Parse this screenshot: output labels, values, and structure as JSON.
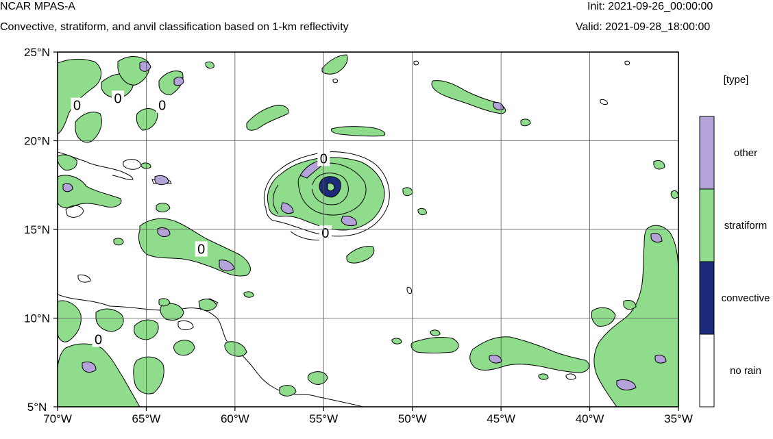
{
  "header": {
    "model": "NCAR MPAS-A",
    "subtitle": "Convective, stratiform, and anvil classification based on 1-km reflectivity",
    "init": "Init: 2021-09-26_00:00:00",
    "valid": "Valid: 2021-09-28_18:00:00"
  },
  "map": {
    "lon_range": [
      -70,
      -35
    ],
    "lat_range": [
      5,
      25
    ],
    "lon_ticks": [
      {
        "value": -70,
        "label": "70°W"
      },
      {
        "value": -65,
        "label": "65°W"
      },
      {
        "value": -60,
        "label": "60°W"
      },
      {
        "value": -55,
        "label": "55°W"
      },
      {
        "value": -50,
        "label": "50°W"
      },
      {
        "value": -45,
        "label": "45°W"
      },
      {
        "value": -40,
        "label": "40°W"
      },
      {
        "value": -35,
        "label": "35°W"
      }
    ],
    "lat_ticks": [
      {
        "value": 25,
        "label": "25°N"
      },
      {
        "value": 20,
        "label": "20°N"
      },
      {
        "value": 15,
        "label": "15°N"
      },
      {
        "value": 10,
        "label": "10°N"
      },
      {
        "value": 5,
        "label": "5°N"
      }
    ],
    "gridlines": true,
    "contour_labels": [
      {
        "text": "0",
        "lon": -68.9,
        "lat": 22.0
      },
      {
        "text": "0",
        "lon": -66.6,
        "lat": 22.4
      },
      {
        "text": "0",
        "lon": -64.1,
        "lat": 22.0
      },
      {
        "text": "0",
        "lon": -55.0,
        "lat": 19.0
      },
      {
        "text": "0",
        "lon": -54.9,
        "lat": 14.8
      },
      {
        "text": "0",
        "lon": -61.9,
        "lat": 13.9
      },
      {
        "text": "0",
        "lon": -67.7,
        "lat": 8.8
      }
    ]
  },
  "legend": {
    "title": "[type]",
    "items": [
      {
        "label": "other",
        "color": "#b3a3d9"
      },
      {
        "label": "stratiform",
        "color": "#8fdc8c"
      },
      {
        "label": "convective",
        "color": "#1c2a7a"
      },
      {
        "label": "no rain",
        "color": "#ffffff"
      }
    ]
  },
  "colors": {
    "stratiform": "#8fdc8c",
    "other": "#b3a3d9",
    "convective": "#1c2a7a",
    "contour": "#000000",
    "grid": "#555555"
  }
}
